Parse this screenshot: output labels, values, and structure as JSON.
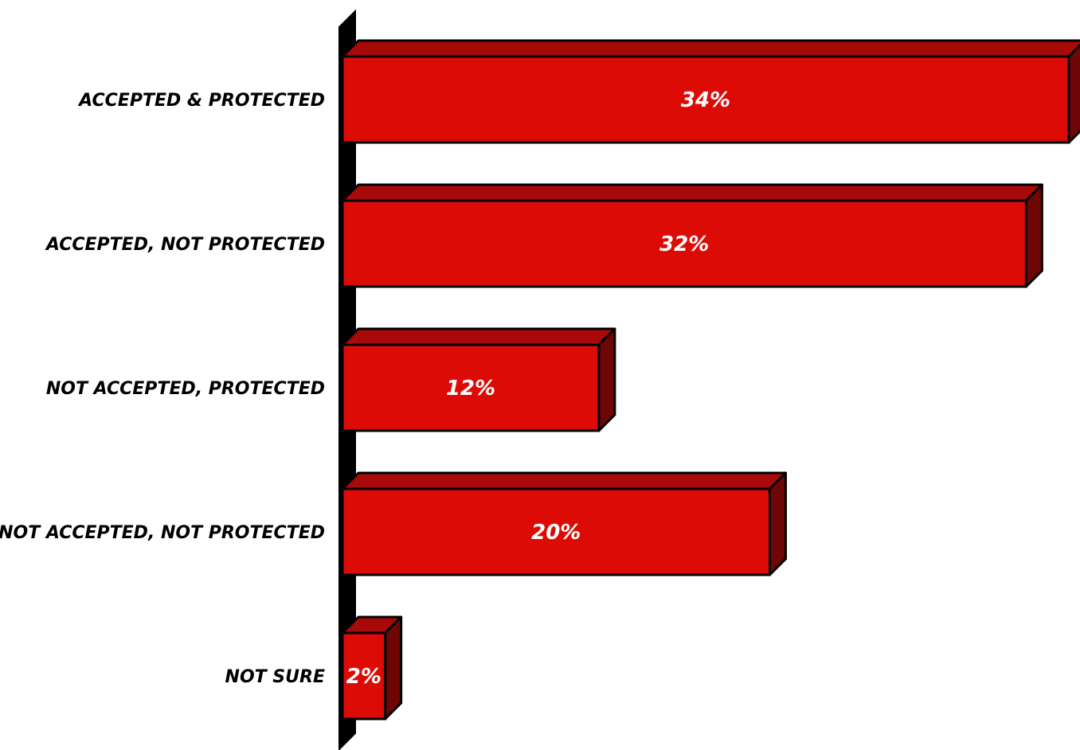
{
  "chart_data": {
    "type": "bar",
    "orientation": "horizontal",
    "categories": [
      "ACCEPTED & PROTECTED",
      "ACCEPTED, NOT PROTECTED",
      "NOT ACCEPTED, PROTECTED",
      "NOT ACCEPTED, NOT PROTECTED",
      "NOT SURE"
    ],
    "values": [
      34,
      32,
      12,
      20,
      2
    ],
    "value_labels": [
      "34%",
      "32%",
      "12%",
      "20%",
      "2%"
    ],
    "title": "",
    "xlabel": "",
    "ylabel": "",
    "xlim": [
      0,
      34
    ],
    "grid": false,
    "legend": "none",
    "style": "3d"
  },
  "colors": {
    "bar_front": "#dd0b06",
    "bar_top": "#a80a0a",
    "bar_side": "#6e0606",
    "axis": "#000000",
    "outline": "#000000",
    "value_text": "#ffffff",
    "category_text": "#000000"
  }
}
